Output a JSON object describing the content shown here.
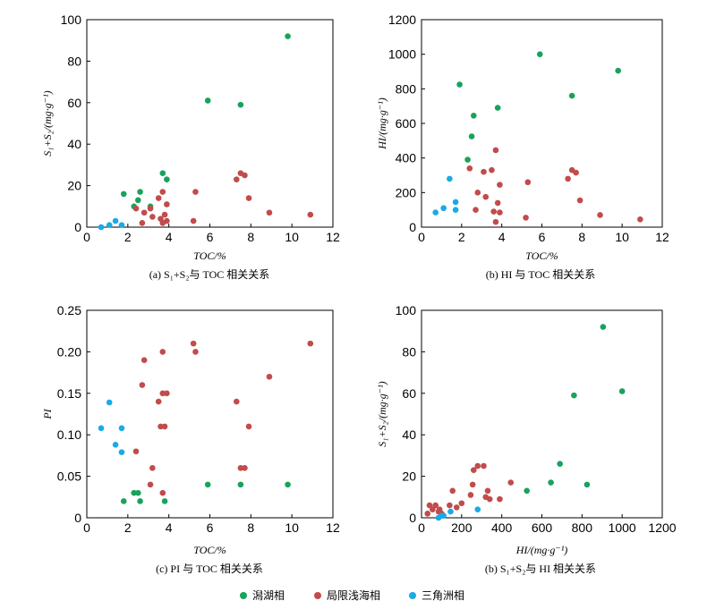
{
  "colors": {
    "lacustrine": "#18a35a",
    "restricted": "#c24b4b",
    "delta": "#1aaae6"
  },
  "legend": [
    {
      "key": "lacustrine",
      "label": "潟湖相"
    },
    {
      "key": "restricted",
      "label": "局限浅海相"
    },
    {
      "key": "delta",
      "label": "三角洲相"
    }
  ],
  "chart_data": [
    {
      "id": "a",
      "type": "scatter",
      "caption": "(a) S₁+S₂与 TOC 相关关系",
      "xlabel": "TOC/%",
      "ylabel": "S₁+S₂/(mg·g⁻¹)",
      "xlim": [
        0,
        12
      ],
      "ylim": [
        0,
        100
      ],
      "xticks": [
        0,
        2,
        4,
        6,
        8,
        10,
        12
      ],
      "yticks": [
        0,
        20,
        40,
        60,
        80,
        100
      ],
      "series": [
        {
          "key": "lacustrine",
          "name": "潟湖相",
          "points": [
            [
              1.8,
              16
            ],
            [
              2.3,
              10
            ],
            [
              2.5,
              13
            ],
            [
              2.6,
              17
            ],
            [
              3.1,
              10
            ],
            [
              3.7,
              26
            ],
            [
              3.9,
              23
            ],
            [
              5.9,
              61
            ],
            [
              7.5,
              59
            ],
            [
              9.8,
              92
            ]
          ]
        },
        {
          "key": "restricted",
          "name": "局限浅海相",
          "points": [
            [
              2.4,
              9
            ],
            [
              2.7,
              2
            ],
            [
              2.8,
              7
            ],
            [
              3.1,
              9
            ],
            [
              3.2,
              5
            ],
            [
              3.5,
              14
            ],
            [
              3.6,
              4
            ],
            [
              3.7,
              17
            ],
            [
              3.7,
              2
            ],
            [
              3.8,
              6
            ],
            [
              3.9,
              11
            ],
            [
              3.9,
              3
            ],
            [
              5.2,
              3
            ],
            [
              5.3,
              17
            ],
            [
              7.3,
              23
            ],
            [
              7.5,
              26
            ],
            [
              7.7,
              25
            ],
            [
              7.9,
              14
            ],
            [
              8.9,
              7
            ],
            [
              10.9,
              6
            ]
          ]
        },
        {
          "key": "delta",
          "name": "三角洲相",
          "points": [
            [
              0.7,
              0
            ],
            [
              1.1,
              1
            ],
            [
              1.4,
              3
            ],
            [
              1.7,
              1
            ]
          ]
        }
      ]
    },
    {
      "id": "b",
      "type": "scatter",
      "caption": "(b) HI 与 TOC 相关关系",
      "xlabel": "TOC/%",
      "ylabel": "HI/(mg·g⁻¹)",
      "xlim": [
        0,
        12
      ],
      "ylim": [
        0,
        1200
      ],
      "xticks": [
        0,
        2,
        4,
        6,
        8,
        10,
        12
      ],
      "yticks": [
        0,
        200,
        400,
        600,
        800,
        1000,
        1200
      ],
      "series": [
        {
          "key": "lacustrine",
          "name": "潟湖相",
          "points": [
            [
              1.9,
              825
            ],
            [
              2.3,
              390
            ],
            [
              2.5,
              525
            ],
            [
              2.6,
              645
            ],
            [
              3.8,
              690
            ],
            [
              5.9,
              1000
            ],
            [
              7.5,
              760
            ],
            [
              9.8,
              905
            ]
          ]
        },
        {
          "key": "restricted",
          "name": "局限浅海相",
          "points": [
            [
              2.4,
              340
            ],
            [
              2.7,
              100
            ],
            [
              2.8,
              200
            ],
            [
              3.1,
              320
            ],
            [
              3.2,
              175
            ],
            [
              3.5,
              330
            ],
            [
              3.6,
              90
            ],
            [
              3.7,
              445
            ],
            [
              3.7,
              30
            ],
            [
              3.8,
              140
            ],
            [
              3.9,
              245
            ],
            [
              3.9,
              85
            ],
            [
              5.2,
              55
            ],
            [
              5.3,
              260
            ],
            [
              7.3,
              280
            ],
            [
              7.5,
              330
            ],
            [
              7.7,
              315
            ],
            [
              7.9,
              155
            ],
            [
              8.9,
              70
            ],
            [
              10.9,
              45
            ]
          ]
        },
        {
          "key": "delta",
          "name": "三角洲相",
          "points": [
            [
              0.7,
              85
            ],
            [
              1.1,
              110
            ],
            [
              1.4,
              280
            ],
            [
              1.7,
              145
            ],
            [
              1.7,
              100
            ]
          ]
        }
      ]
    },
    {
      "id": "c",
      "type": "scatter",
      "caption": "(c) PI 与 TOC 相关关系",
      "xlabel": "TOC/%",
      "ylabel": "PI",
      "xlim": [
        0,
        12
      ],
      "ylim": [
        0,
        0.25
      ],
      "xticks": [
        0,
        2,
        4,
        6,
        8,
        10,
        12
      ],
      "yticks": [
        0,
        0.05,
        0.1,
        0.15,
        0.2,
        0.25
      ],
      "ytick_labels": [
        "0",
        "0.05",
        "0.10",
        "0.15",
        "0.20",
        "0.25"
      ],
      "series": [
        {
          "key": "lacustrine",
          "name": "潟湖相",
          "points": [
            [
              1.8,
              0.02
            ],
            [
              2.3,
              0.03
            ],
            [
              2.5,
              0.03
            ],
            [
              2.6,
              0.02
            ],
            [
              3.8,
              0.02
            ],
            [
              5.9,
              0.04
            ],
            [
              7.5,
              0.04
            ],
            [
              9.8,
              0.04
            ]
          ]
        },
        {
          "key": "restricted",
          "name": "局限浅海相",
          "points": [
            [
              2.4,
              0.08
            ],
            [
              2.7,
              0.16
            ],
            [
              2.8,
              0.19
            ],
            [
              3.1,
              0.04
            ],
            [
              3.2,
              0.06
            ],
            [
              3.5,
              0.14
            ],
            [
              3.6,
              0.11
            ],
            [
              3.7,
              0.2
            ],
            [
              3.7,
              0.15
            ],
            [
              3.8,
              0.11
            ],
            [
              3.7,
              0.03
            ],
            [
              3.9,
              0.15
            ],
            [
              5.2,
              0.21
            ],
            [
              5.3,
              0.2
            ],
            [
              7.3,
              0.14
            ],
            [
              7.5,
              0.06
            ],
            [
              7.7,
              0.06
            ],
            [
              7.9,
              0.11
            ],
            [
              8.9,
              0.17
            ],
            [
              10.9,
              0.21
            ]
          ]
        },
        {
          "key": "delta",
          "name": "三角洲相",
          "points": [
            [
              0.7,
              0.108
            ],
            [
              1.1,
              0.139
            ],
            [
              1.4,
              0.088
            ],
            [
              1.7,
              0.108
            ],
            [
              1.7,
              0.079
            ]
          ]
        }
      ]
    },
    {
      "id": "d",
      "type": "scatter",
      "caption": "(b) S₁+S₂与 HI 相关关系",
      "xlabel": "HI/(mg·g⁻¹)",
      "ylabel": "S₁+S₂/(mg·g⁻¹)",
      "xlim": [
        0,
        1200
      ],
      "ylim": [
        0,
        100
      ],
      "xticks": [
        0,
        200,
        400,
        600,
        800,
        1000,
        1200
      ],
      "yticks": [
        0,
        20,
        40,
        60,
        80,
        100
      ],
      "series": [
        {
          "key": "lacustrine",
          "name": "潟湖相",
          "points": [
            [
              525,
              13
            ],
            [
              645,
              17
            ],
            [
              690,
              26
            ],
            [
              760,
              59
            ],
            [
              825,
              16
            ],
            [
              905,
              92
            ],
            [
              1000,
              61
            ]
          ]
        },
        {
          "key": "restricted",
          "name": "局限浅海相",
          "points": [
            [
              30,
              2
            ],
            [
              40,
              6
            ],
            [
              55,
              4
            ],
            [
              70,
              6
            ],
            [
              85,
              3
            ],
            [
              90,
              4
            ],
            [
              100,
              2
            ],
            [
              140,
              6
            ],
            [
              155,
              13
            ],
            [
              175,
              5
            ],
            [
              200,
              7
            ],
            [
              245,
              11
            ],
            [
              255,
              16
            ],
            [
              260,
              23
            ],
            [
              280,
              25
            ],
            [
              310,
              25
            ],
            [
              320,
              10
            ],
            [
              330,
              13
            ],
            [
              340,
              9
            ],
            [
              390,
              9
            ],
            [
              445,
              17
            ]
          ]
        },
        {
          "key": "delta",
          "name": "三角洲相",
          "points": [
            [
              85,
              0
            ],
            [
              100,
              1
            ],
            [
              110,
              1
            ],
            [
              145,
              3
            ],
            [
              280,
              4
            ]
          ]
        }
      ]
    }
  ]
}
